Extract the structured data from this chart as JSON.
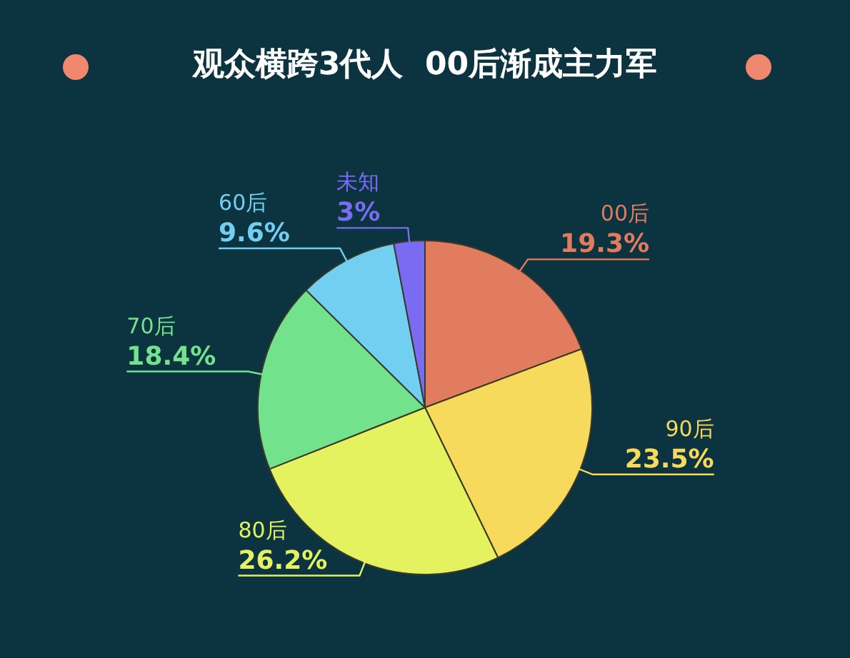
{
  "chart_data": {
    "type": "pie",
    "title": "观众横跨3代人  00后渐成主力军",
    "categories": [
      "00后",
      "90后",
      "80后",
      "70后",
      "60后",
      "未知"
    ],
    "values": [
      19.3,
      23.5,
      26.2,
      18.4,
      9.6,
      3
    ],
    "colors": [
      "#e27c5e",
      "#f7d95c",
      "#e3f25e",
      "#72e38c",
      "#72cff2",
      "#7a6cf2"
    ],
    "value_labels": [
      "19.3%",
      "23.5%",
      "26.2%",
      "18.4%",
      "9.6%",
      "3%"
    ],
    "legend": false
  }
}
